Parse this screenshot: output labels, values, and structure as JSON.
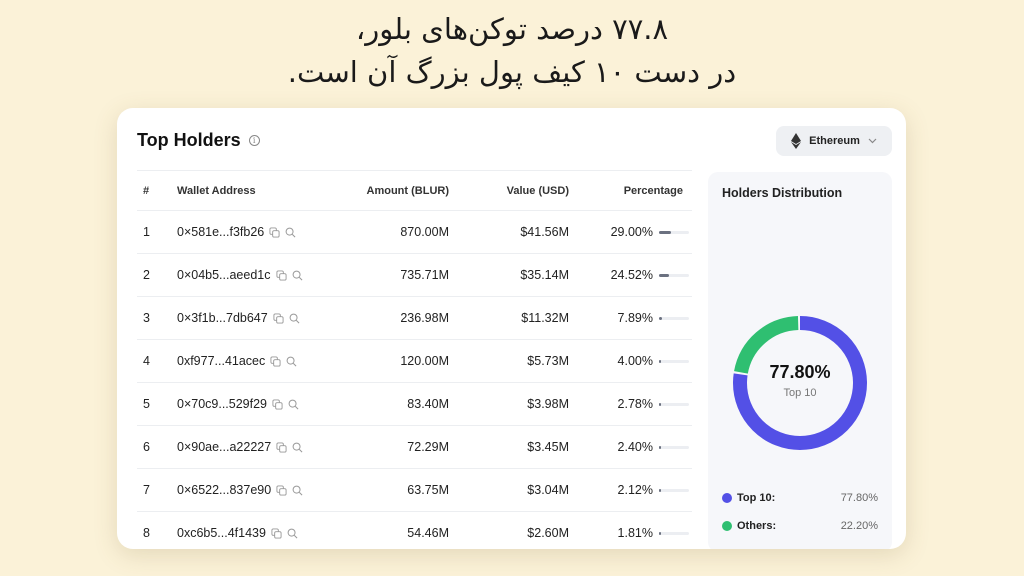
{
  "headline": {
    "line1": "۷۷.۸ درصد توکن‌های بلور،",
    "line2": "در دست ۱۰ کیف پول بزرگ آن است."
  },
  "card": {
    "title": "Top Holders",
    "info_icon": "info-icon",
    "chain_selector": {
      "value": "Ethereum",
      "icon": "ethereum-icon"
    }
  },
  "table": {
    "headers": {
      "num": "#",
      "address": "Wallet Address",
      "amount": "Amount (BLUR)",
      "value": "Value (USD)",
      "percentage": "Percentage"
    },
    "rows": [
      {
        "num": "1",
        "address": "0×581e...f3fb26",
        "amount": "870.00M",
        "value": "$41.56M",
        "percentage": "29.00%",
        "bar": 29.0
      },
      {
        "num": "2",
        "address": "0×04b5...aeed1c",
        "amount": "735.71M",
        "value": "$35.14M",
        "percentage": "24.52%",
        "bar": 24.52
      },
      {
        "num": "3",
        "address": "0×3f1b...7db647",
        "amount": "236.98M",
        "value": "$11.32M",
        "percentage": "7.89%",
        "bar": 7.89
      },
      {
        "num": "4",
        "address": "0xf977...41acec",
        "amount": "120.00M",
        "value": "$5.73M",
        "percentage": "4.00%",
        "bar": 4.0
      },
      {
        "num": "5",
        "address": "0×70c9...529f29",
        "amount": "83.40M",
        "value": "$3.98M",
        "percentage": "2.78%",
        "bar": 2.78
      },
      {
        "num": "6",
        "address": "0×90ae...a22227",
        "amount": "72.29M",
        "value": "$3.45M",
        "percentage": "2.40%",
        "bar": 2.4
      },
      {
        "num": "7",
        "address": "0×6522...837e90",
        "amount": "63.75M",
        "value": "$3.04M",
        "percentage": "2.12%",
        "bar": 2.12
      },
      {
        "num": "8",
        "address": "0xc6b5...4f1439",
        "amount": "54.46M",
        "value": "$2.60M",
        "percentage": "1.81%",
        "bar": 1.81
      }
    ]
  },
  "distribution": {
    "title": "Holders Distribution",
    "center_value": "77.80%",
    "center_label": "Top 10",
    "colors": {
      "top10": "#5350e6",
      "others": "#2fbf71"
    },
    "legend": [
      {
        "name": "Top 10:",
        "value": "77.80%"
      },
      {
        "name": "Others:",
        "value": "22.20%"
      }
    ]
  },
  "chart_data": {
    "type": "pie",
    "title": "Holders Distribution",
    "categories": [
      "Top 10",
      "Others"
    ],
    "values": [
      77.8,
      22.2
    ],
    "colors": [
      "#5350e6",
      "#2fbf71"
    ],
    "center_text": "77.80% Top 10",
    "legend_position": "bottom"
  }
}
